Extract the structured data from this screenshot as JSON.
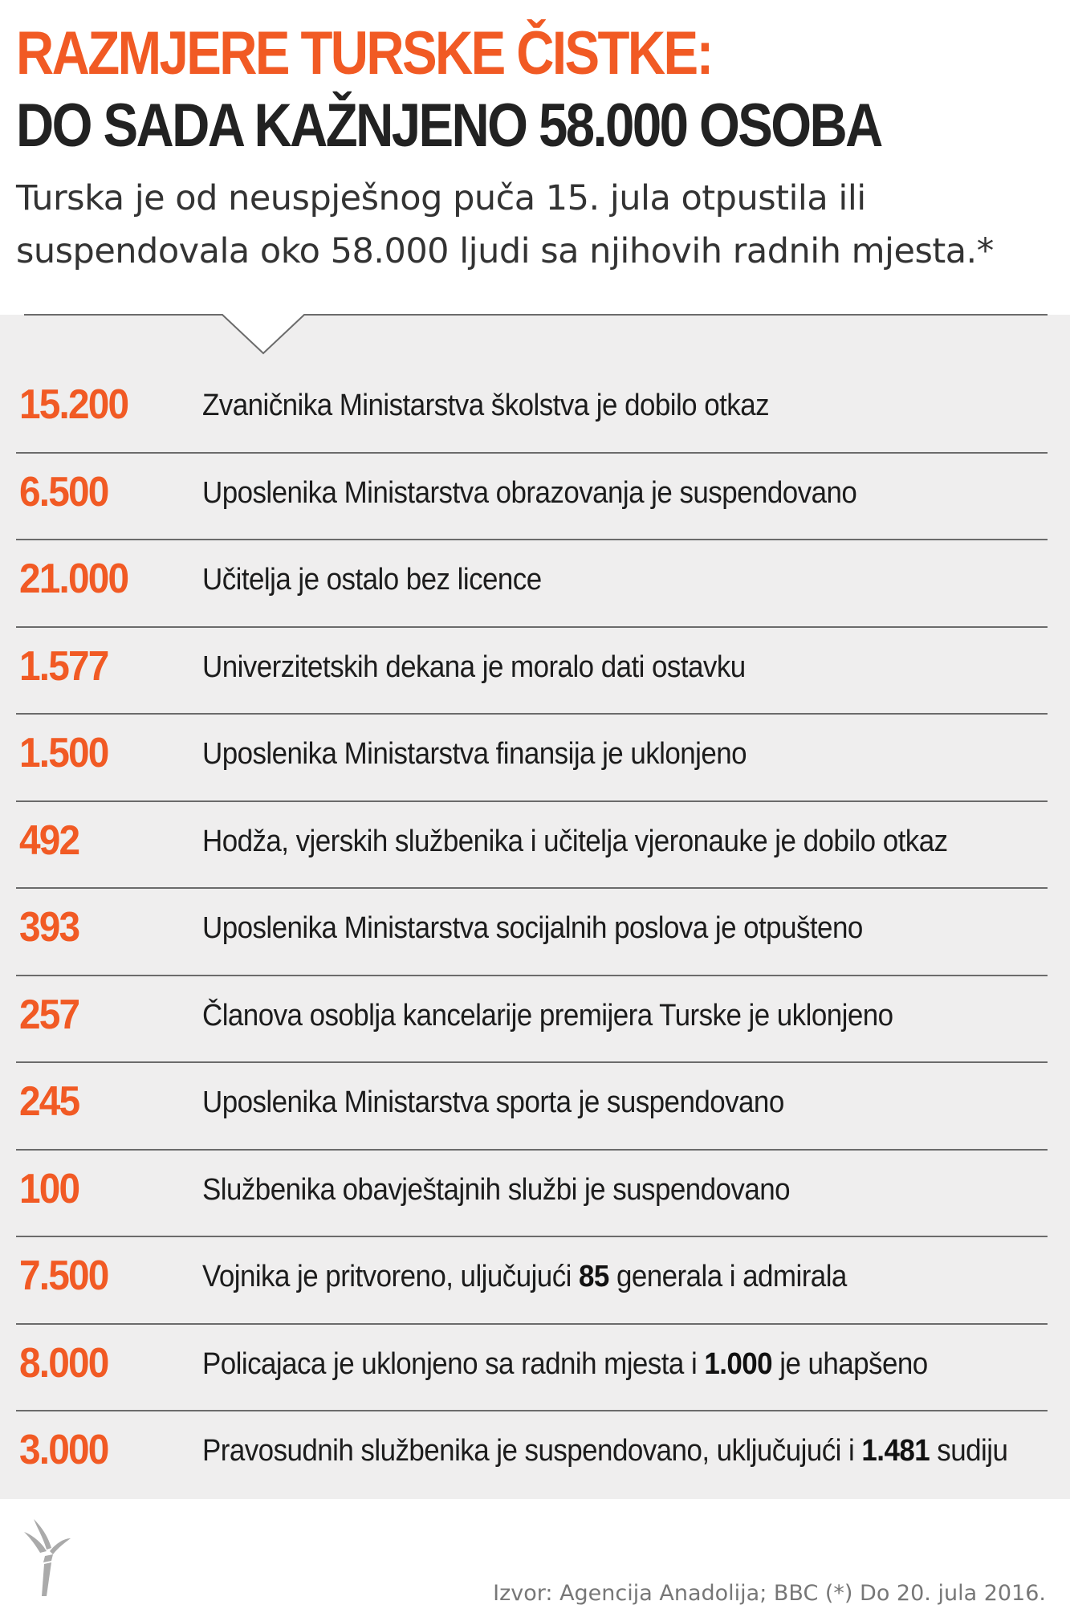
{
  "header": {
    "title_line1": "RAZMJERE TURSKE ČISTKE:",
    "title_line2": "DO SADA KAŽNJENO 58.000 OSOBA",
    "subtitle_line1": "Turska je od neuspješnog puča 15. jula otpustila ili",
    "subtitle_line2": "suspendovala oko 58.000 ljudi sa njihovih radnih mjesta.*"
  },
  "rows": [
    {
      "number": "15.200",
      "text": "Zvaničnika Ministarstva školstva je dobilo otkaz"
    },
    {
      "number": "6.500",
      "text": "Uposlenika Ministarstva obrazovanja je suspendovano"
    },
    {
      "number": "21.000",
      "text": "Učitelja je ostalo bez licence"
    },
    {
      "number": "1.577",
      "text": "Univerzitetskih dekana je moralo dati ostavku"
    },
    {
      "number": "1.500",
      "text": "Uposlenika Ministarstva finansija je uklonjeno"
    },
    {
      "number": "492",
      "text": "Hodža, vjerskih službenika i učitelja vjeronauke je dobilo otkaz"
    },
    {
      "number": "393",
      "text": "Uposlenika Ministarstva socijalnih poslova je otpušteno"
    },
    {
      "number": "257",
      "text": "Članova osoblja kancelarije premijera Turske je uklonjeno"
    },
    {
      "number": "245",
      "text": "Uposlenika Ministarstva sporta je suspendovano"
    },
    {
      "number": "100",
      "text": "Službenika obavještajnih službi je suspendovano"
    },
    {
      "number": "7.500",
      "text_before": "Vojnika je pritvoreno, uljučujući ",
      "text_bold": "85",
      "text_after": " generala i admirala"
    },
    {
      "number": "8.000",
      "text_before": "Policajaca je uklonjeno sa radnih mjesta i ",
      "text_bold": "1.000",
      "text_after": " je uhapšeno"
    },
    {
      "number": "3.000",
      "text_before": "Pravosudnih službenika je suspendovano, uključujući i ",
      "text_bold": "1.481",
      "text_after": " sudiju"
    }
  ],
  "footer": {
    "logo_icon": "torch-logo-icon",
    "source": "Izvor: Agencija Anadolija; BBC (*) Do 20. jula 2016."
  },
  "colors": {
    "accent": "#f15a24",
    "dark_text": "#222222",
    "panel_background": "#efeeee",
    "divider": "#6b6b6b",
    "muted_text": "#777777"
  }
}
